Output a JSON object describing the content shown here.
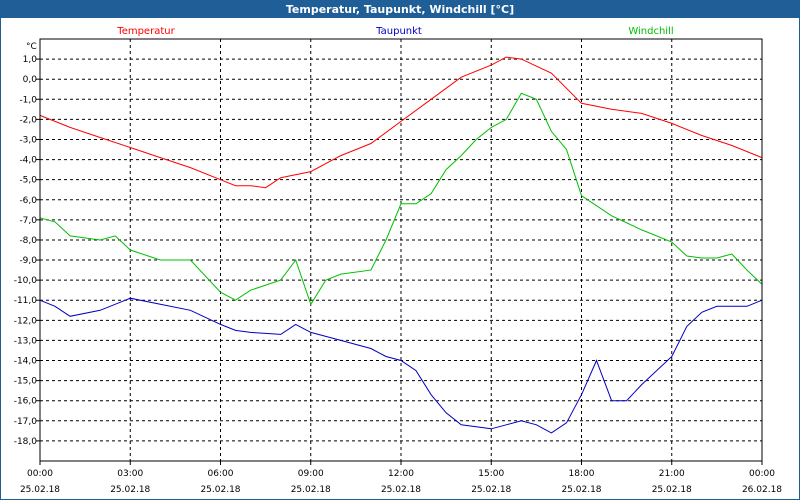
{
  "window": {
    "title": "Temperatur, Taupunkt, Windchill [°C]"
  },
  "chart_data": {
    "type": "line",
    "title": "Temperatur, Taupunkt, Windchill [°C]",
    "ylabel": "°C",
    "ylim": [
      -19,
      2
    ],
    "y_ticks": [
      "1,0",
      "0,0",
      "-1,0",
      "-2,0",
      "-3,0",
      "-4,0",
      "-5,0",
      "-6,0",
      "-7,0",
      "-8,0",
      "-9,0",
      "-10,0",
      "-11,0",
      "-12,0",
      "-13,0",
      "-14,0",
      "-15,0",
      "-16,0",
      "-17,0",
      "-18,0"
    ],
    "x_tick_times": [
      "00:00",
      "03:00",
      "06:00",
      "09:00",
      "12:00",
      "15:00",
      "18:00",
      "21:00",
      "00:00"
    ],
    "x_tick_dates": [
      "25.02.18",
      "25.02.18",
      "25.02.18",
      "25.02.18",
      "25.02.18",
      "25.02.18",
      "25.02.18",
      "25.02.18",
      "26.02.18"
    ],
    "grid": true,
    "legend_position": "top",
    "colors": {
      "Temperatur": "#ff0000",
      "Taupunkt": "#0000c0",
      "Windchill": "#00c000",
      "axes": "#000000",
      "grid": "#000000"
    },
    "series": [
      {
        "name": "Temperatur",
        "x": [
          "00:00",
          "01:00",
          "02:00",
          "03:00",
          "04:00",
          "05:00",
          "06:00",
          "06:30",
          "07:00",
          "07:30",
          "08:00",
          "09:00",
          "10:00",
          "11:00",
          "12:00",
          "13:00",
          "14:00",
          "15:00",
          "15:30",
          "16:00",
          "17:00",
          "18:00",
          "19:00",
          "20:00",
          "21:00",
          "22:00",
          "23:00",
          "24:00"
        ],
        "values": [
          -1.8,
          -2.4,
          -2.9,
          -3.4,
          -3.9,
          -4.4,
          -5.0,
          -5.3,
          -5.3,
          -5.4,
          -4.9,
          -4.6,
          -3.8,
          -3.2,
          -2.1,
          -1.0,
          0.1,
          0.7,
          1.1,
          1.0,
          0.3,
          -1.2,
          -1.5,
          -1.7,
          -2.2,
          -2.8,
          -3.3,
          -3.9
        ]
      },
      {
        "name": "Taupunkt",
        "x": [
          "00:00",
          "00:30",
          "01:00",
          "02:00",
          "03:00",
          "04:00",
          "05:00",
          "06:00",
          "06:30",
          "07:00",
          "08:00",
          "08:30",
          "09:00",
          "10:00",
          "11:00",
          "11:30",
          "12:00",
          "12:30",
          "13:00",
          "13:30",
          "14:00",
          "14:30",
          "15:00",
          "15:30",
          "16:00",
          "16:30",
          "17:00",
          "17:30",
          "18:00",
          "18:30",
          "19:00",
          "19:30",
          "20:00",
          "21:00",
          "21:30",
          "22:00",
          "22:30",
          "23:00",
          "23:30",
          "24:00"
        ],
        "values": [
          -11.0,
          -11.3,
          -11.8,
          -11.5,
          -10.9,
          -11.2,
          -11.5,
          -12.2,
          -12.5,
          -12.6,
          -12.7,
          -12.2,
          -12.6,
          -13.0,
          -13.4,
          -13.8,
          -14.0,
          -14.5,
          -15.7,
          -16.6,
          -17.2,
          -17.3,
          -17.4,
          -17.2,
          -17.0,
          -17.2,
          -17.6,
          -17.1,
          -15.7,
          -14.0,
          -16.0,
          -16.0,
          -15.2,
          -13.8,
          -12.3,
          -11.6,
          -11.3,
          -11.3,
          -11.3,
          -11.0
        ]
      },
      {
        "name": "Windchill",
        "x": [
          "00:00",
          "00:30",
          "01:00",
          "02:00",
          "02:30",
          "03:00",
          "04:00",
          "05:00",
          "06:00",
          "06:30",
          "07:00",
          "08:00",
          "08:30",
          "09:00",
          "09:30",
          "10:00",
          "11:00",
          "11:30",
          "12:00",
          "12:30",
          "13:00",
          "13:30",
          "14:00",
          "14:30",
          "15:00",
          "15:30",
          "16:00",
          "16:30",
          "17:00",
          "17:30",
          "18:00",
          "19:00",
          "20:00",
          "21:00",
          "21:30",
          "22:00",
          "22:30",
          "23:00",
          "23:30",
          "24:00"
        ],
        "values": [
          -6.9,
          -7.1,
          -7.8,
          -8.0,
          -7.8,
          -8.5,
          -9.0,
          -9.0,
          -10.6,
          -11.0,
          -10.5,
          -10.0,
          -9.0,
          -11.2,
          -10.0,
          -9.7,
          -9.5,
          -8.0,
          -6.2,
          -6.2,
          -5.7,
          -4.5,
          -3.8,
          -3.0,
          -2.4,
          -2.0,
          -0.7,
          -1.0,
          -2.6,
          -3.5,
          -5.8,
          -6.8,
          -7.5,
          -8.1,
          -8.8,
          -8.9,
          -8.9,
          -8.7,
          -9.5,
          -10.2
        ]
      }
    ]
  }
}
